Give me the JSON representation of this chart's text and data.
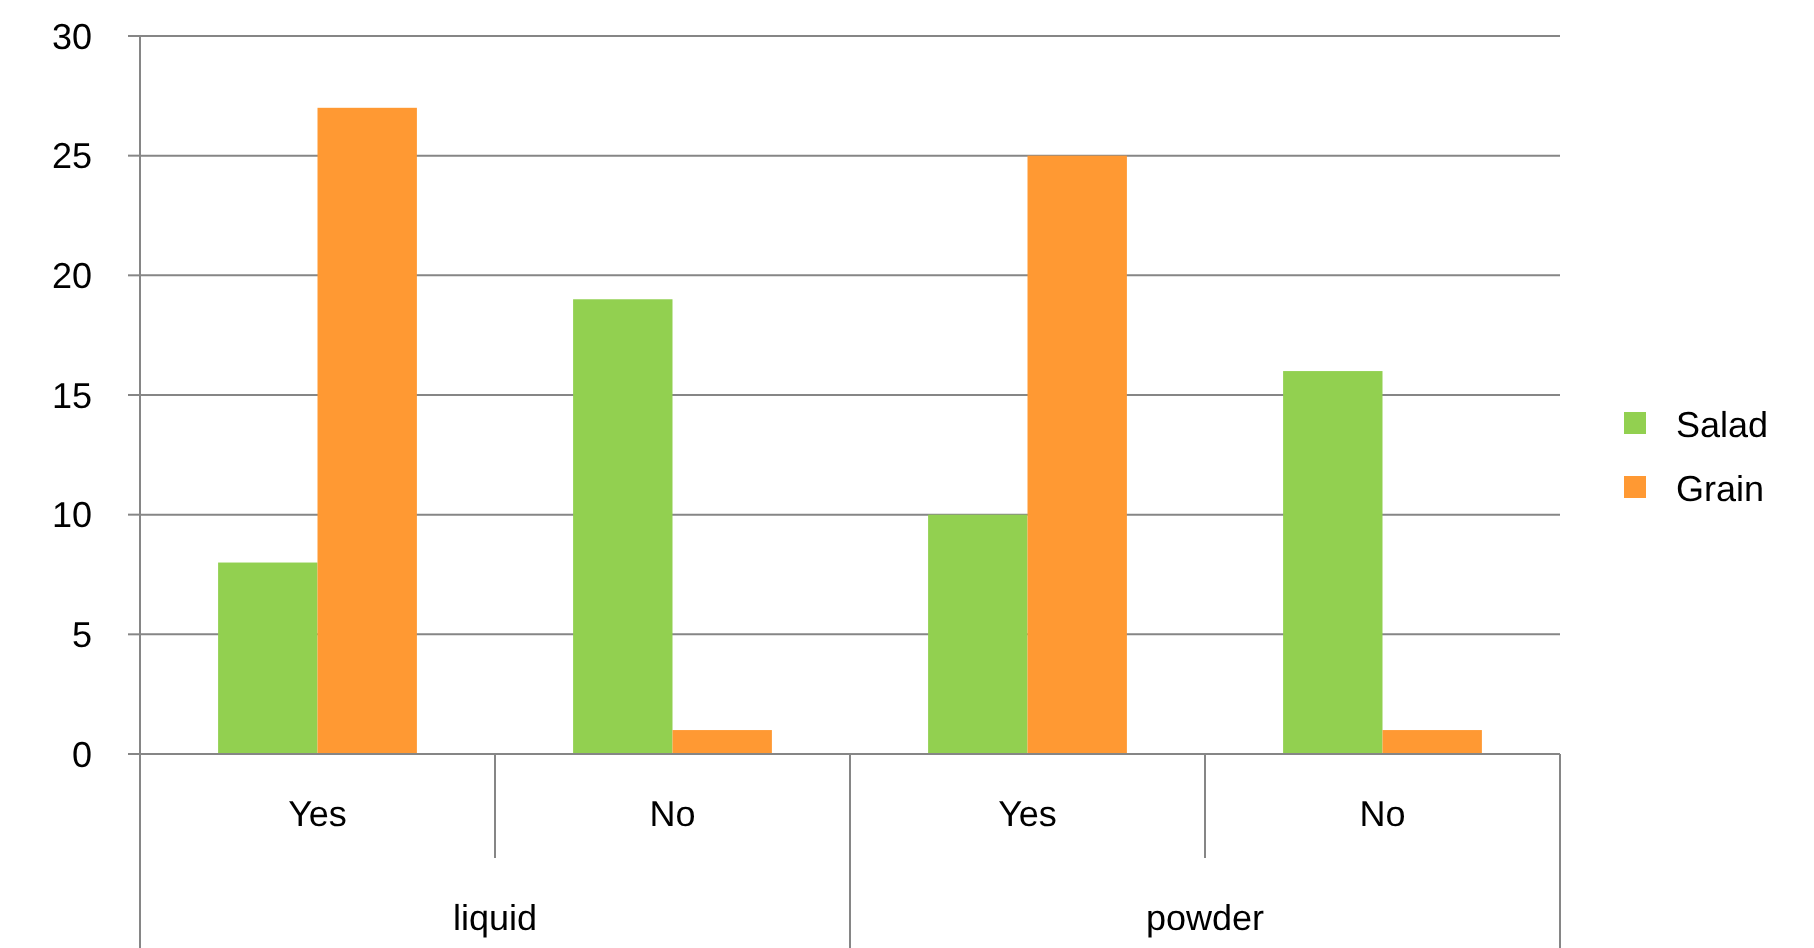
{
  "chart_data": {
    "type": "bar",
    "categories": [
      "Yes",
      "No",
      "Yes",
      "No"
    ],
    "series": [
      {
        "name": "Salad",
        "color": "#92d050",
        "values": [
          8,
          19,
          10,
          16
        ]
      },
      {
        "name": "Grain",
        "color": "#ff9933",
        "values": [
          27,
          1,
          25,
          1
        ]
      }
    ],
    "ylim": [
      0,
      30
    ],
    "yticks": [
      0,
      5,
      10,
      15,
      20,
      25,
      30
    ],
    "grid": "y",
    "legend": "right",
    "annotations": [
      "liquid",
      "powder"
    ]
  }
}
